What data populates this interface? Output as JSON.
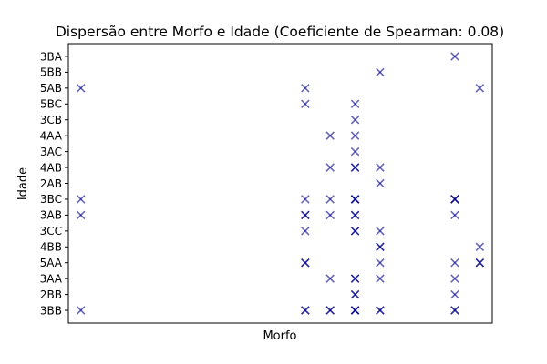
{
  "chart_data": {
    "type": "scatter",
    "title": "Dispersão entre Morfo e Idade (Coeficiente de Spearman: 0.08)",
    "xlabel": "Morfo",
    "ylabel": "Idade",
    "x_ticks_visible": false,
    "grid": false,
    "y_categories": [
      "3BB",
      "2BB",
      "3AA",
      "5AA",
      "4BB",
      "3CC",
      "3AB",
      "3BC",
      "2AB",
      "4AB",
      "3AC",
      "4AA",
      "3CB",
      "5BC",
      "5AB",
      "5BB",
      "3BA"
    ],
    "x_range": [
      -0.5,
      16.5
    ],
    "marker": "x",
    "marker_color": "#00008b",
    "marker_alpha": 0.6,
    "points": [
      {
        "x": 0,
        "y": "5AB"
      },
      {
        "x": 0,
        "y": "3BC"
      },
      {
        "x": 0,
        "y": "3AB"
      },
      {
        "x": 0,
        "y": "3BB"
      },
      {
        "x": 9,
        "y": "5AB"
      },
      {
        "x": 9,
        "y": "5BC"
      },
      {
        "x": 9,
        "y": "3BC"
      },
      {
        "x": 9,
        "y": "3AB"
      },
      {
        "x": 9,
        "y": "3AB"
      },
      {
        "x": 9,
        "y": "3CC"
      },
      {
        "x": 9,
        "y": "5AA"
      },
      {
        "x": 9,
        "y": "5AA"
      },
      {
        "x": 9,
        "y": "3BB"
      },
      {
        "x": 9,
        "y": "3BB"
      },
      {
        "x": 10,
        "y": "4AA"
      },
      {
        "x": 10,
        "y": "4AB"
      },
      {
        "x": 10,
        "y": "3BC"
      },
      {
        "x": 10,
        "y": "3AB"
      },
      {
        "x": 10,
        "y": "3AA"
      },
      {
        "x": 10,
        "y": "3BB"
      },
      {
        "x": 10,
        "y": "3BB"
      },
      {
        "x": 11,
        "y": "5BC"
      },
      {
        "x": 11,
        "y": "3CB"
      },
      {
        "x": 11,
        "y": "4AA"
      },
      {
        "x": 11,
        "y": "3AC"
      },
      {
        "x": 11,
        "y": "4AB"
      },
      {
        "x": 11,
        "y": "4AB"
      },
      {
        "x": 11,
        "y": "3BC"
      },
      {
        "x": 11,
        "y": "3BC"
      },
      {
        "x": 11,
        "y": "3BC"
      },
      {
        "x": 11,
        "y": "3AB"
      },
      {
        "x": 11,
        "y": "3AB"
      },
      {
        "x": 11,
        "y": "3CC"
      },
      {
        "x": 11,
        "y": "3CC"
      },
      {
        "x": 11,
        "y": "3AA"
      },
      {
        "x": 11,
        "y": "3AA"
      },
      {
        "x": 11,
        "y": "2BB"
      },
      {
        "x": 11,
        "y": "2BB"
      },
      {
        "x": 11,
        "y": "3BB"
      },
      {
        "x": 11,
        "y": "3BB"
      },
      {
        "x": 11,
        "y": "3BB"
      },
      {
        "x": 12,
        "y": "5BB"
      },
      {
        "x": 12,
        "y": "4AB"
      },
      {
        "x": 12,
        "y": "2AB"
      },
      {
        "x": 12,
        "y": "3CC"
      },
      {
        "x": 12,
        "y": "4BB"
      },
      {
        "x": 12,
        "y": "4BB"
      },
      {
        "x": 12,
        "y": "5AA"
      },
      {
        "x": 12,
        "y": "3AA"
      },
      {
        "x": 12,
        "y": "3BB"
      },
      {
        "x": 12,
        "y": "3BB"
      },
      {
        "x": 15,
        "y": "3BA"
      },
      {
        "x": 15,
        "y": "3BC"
      },
      {
        "x": 15,
        "y": "3BC"
      },
      {
        "x": 15,
        "y": "3BC"
      },
      {
        "x": 15,
        "y": "3AB"
      },
      {
        "x": 15,
        "y": "5AA"
      },
      {
        "x": 15,
        "y": "3AA"
      },
      {
        "x": 15,
        "y": "2BB"
      },
      {
        "x": 15,
        "y": "3BB"
      },
      {
        "x": 15,
        "y": "3BB"
      },
      {
        "x": 16,
        "y": "5AB"
      },
      {
        "x": 16,
        "y": "4BB"
      },
      {
        "x": 16,
        "y": "5AA"
      },
      {
        "x": 16,
        "y": "5AA"
      }
    ]
  }
}
